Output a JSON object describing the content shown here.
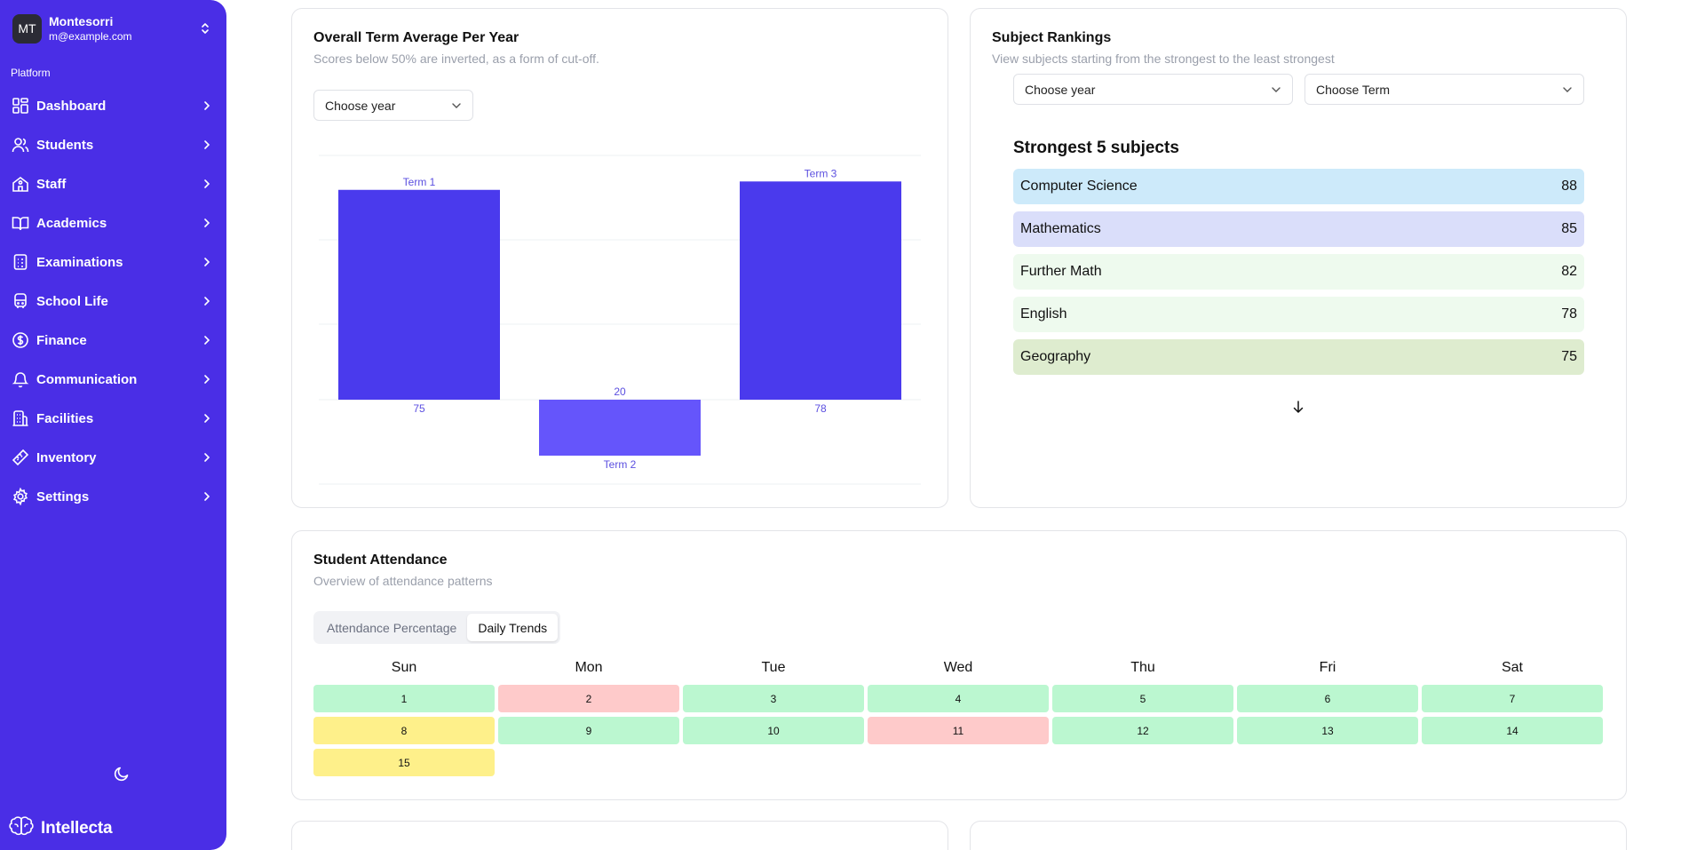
{
  "account": {
    "initials": "MT",
    "name": "Montesorri",
    "email": "m@example.com"
  },
  "sidebar": {
    "group_label": "Platform",
    "items": [
      {
        "label": "Dashboard",
        "icon": "dashboard-icon"
      },
      {
        "label": "Students",
        "icon": "users-icon"
      },
      {
        "label": "Staff",
        "icon": "school-building-icon"
      },
      {
        "label": "Academics",
        "icon": "book-icon"
      },
      {
        "label": "Examinations",
        "icon": "clipboard-icon"
      },
      {
        "label": "School Life",
        "icon": "bus-icon"
      },
      {
        "label": "Finance",
        "icon": "dollar-icon"
      },
      {
        "label": "Communication",
        "icon": "bell-icon"
      },
      {
        "label": "Facilities",
        "icon": "building-icon"
      },
      {
        "label": "Inventory",
        "icon": "ruler-icon"
      },
      {
        "label": "Settings",
        "icon": "gear-icon"
      }
    ]
  },
  "brand": {
    "name": "Intellecta",
    "icon": "brain-icon"
  },
  "term_average": {
    "title": "Overall Term Average Per Year",
    "subtitle": "Scores below 50% are inverted, as a form of cut-off.",
    "year_select": "Choose year"
  },
  "chart_data": {
    "type": "bar",
    "categories": [
      "Term 1",
      "Term 2",
      "Term 3"
    ],
    "values": [
      75,
      20,
      78
    ],
    "note": "Scores below 50% are inverted",
    "colors": {
      "normal": "#4a3aed",
      "inverted": "#6555fb",
      "label": "#5b4fe0"
    }
  },
  "rankings": {
    "title": "Subject Rankings",
    "subtitle": "View subjects starting from the strongest to the least strongest",
    "year_select": "Choose year",
    "term_select": "Choose Term",
    "strongest_title": "Strongest 5 subjects",
    "subjects": [
      {
        "name": "Computer Science",
        "score": "88",
        "color": "#cdeafa"
      },
      {
        "name": "Mathematics",
        "score": "85",
        "color": "#dadefa"
      },
      {
        "name": "Further Math",
        "score": "82",
        "color": "#eefaee"
      },
      {
        "name": "English",
        "score": "78",
        "color": "#eefaee"
      },
      {
        "name": "Geography",
        "score": "75",
        "color": "#deeccf"
      }
    ]
  },
  "attendance": {
    "title": "Student Attendance",
    "subtitle": "Overview of attendance patterns",
    "tabs": [
      {
        "label": "Attendance Percentage",
        "active": false
      },
      {
        "label": "Daily Trends",
        "active": true
      }
    ],
    "weekdays": [
      "Sun",
      "Mon",
      "Tue",
      "Wed",
      "Thu",
      "Fri",
      "Sat"
    ],
    "days": [
      {
        "day": "1",
        "status": "present"
      },
      {
        "day": "2",
        "status": "absent"
      },
      {
        "day": "3",
        "status": "present"
      },
      {
        "day": "4",
        "status": "present"
      },
      {
        "day": "5",
        "status": "present"
      },
      {
        "day": "6",
        "status": "present"
      },
      {
        "day": "7",
        "status": "present"
      },
      {
        "day": "8",
        "status": "late"
      },
      {
        "day": "9",
        "status": "present"
      },
      {
        "day": "10",
        "status": "present"
      },
      {
        "day": "11",
        "status": "absent"
      },
      {
        "day": "12",
        "status": "present"
      },
      {
        "day": "13",
        "status": "present"
      },
      {
        "day": "14",
        "status": "present"
      },
      {
        "day": "15",
        "status": "late"
      }
    ]
  }
}
